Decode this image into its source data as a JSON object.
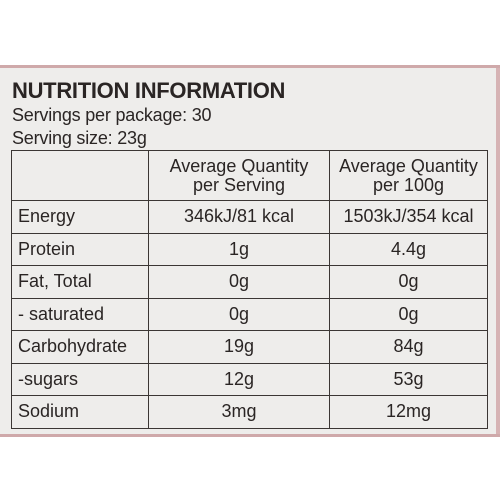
{
  "title": "NUTRITION INFORMATION",
  "servings_per_package": "Servings per package: 30",
  "serving_size": "Serving size: 23g",
  "columns": {
    "per_serving": [
      "Average Quantity",
      "per Serving"
    ],
    "per_100g": [
      "Average Quantity",
      "per 100g"
    ]
  },
  "rows": [
    {
      "label": "Energy",
      "per_serving": "346kJ/81 kcal",
      "per_100g": "1503kJ/354 kcal"
    },
    {
      "label": "Protein",
      "per_serving": "1g",
      "per_100g": "4.4g"
    },
    {
      "label": "Fat, Total",
      "per_serving": "0g",
      "per_100g": "0g"
    },
    {
      "label": "- saturated",
      "per_serving": "0g",
      "per_100g": "0g"
    },
    {
      "label": "Carbohydrate",
      "per_serving": "19g",
      "per_100g": "84g"
    },
    {
      "label": "-sugars",
      "per_serving": "12g",
      "per_100g": "53g"
    },
    {
      "label": "Sodium",
      "per_serving": "3mg",
      "per_100g": "12mg"
    }
  ]
}
